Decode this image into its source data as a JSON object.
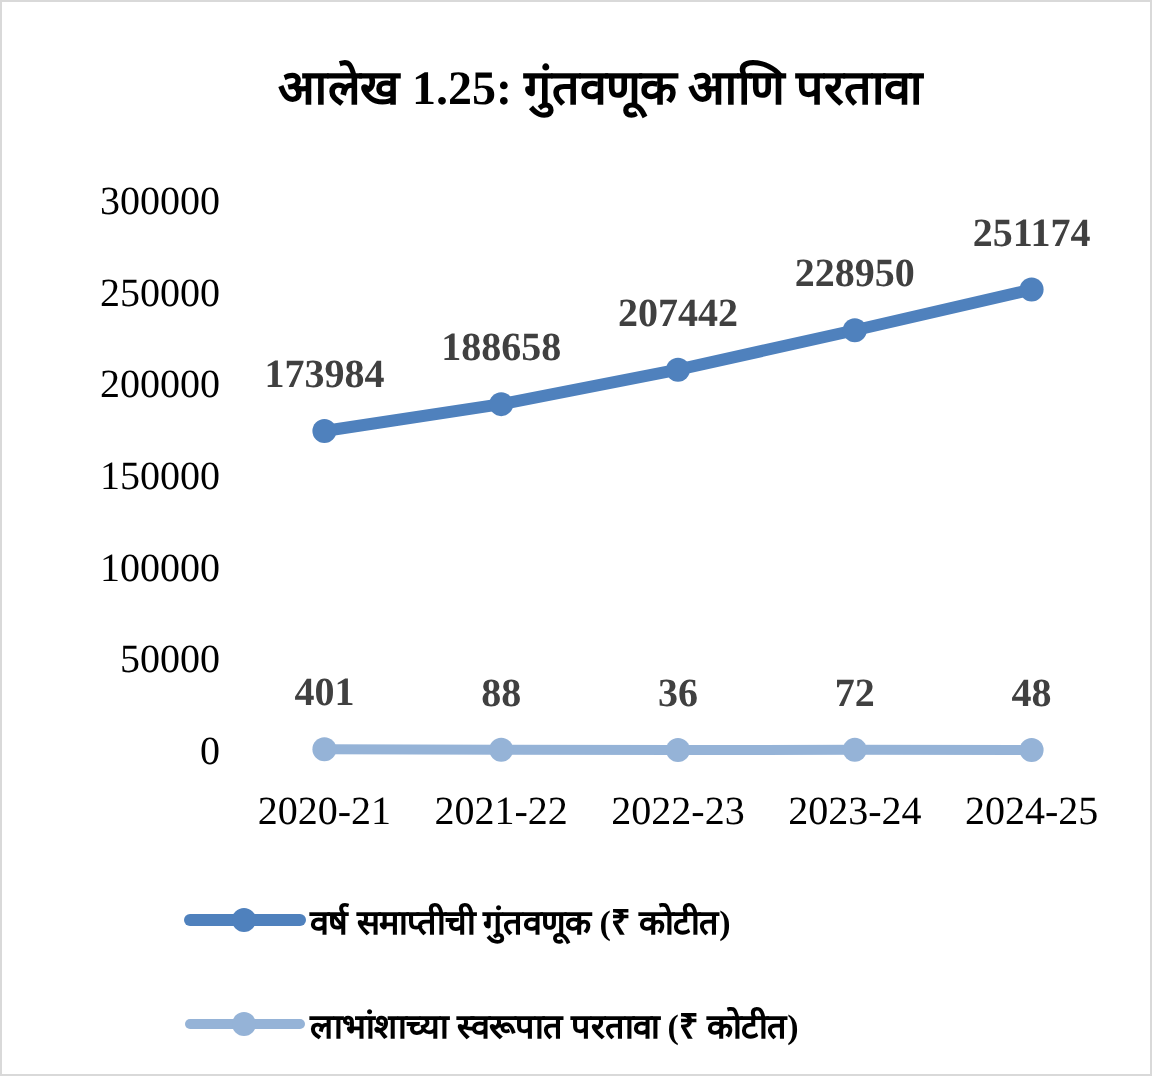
{
  "chart_data": {
    "type": "line",
    "title": "आलेख 1.25: गुंतवणूक आणि परतावा",
    "categories": [
      "2020-21",
      "2021-22",
      "2022-23",
      "2023-24",
      "2024-25"
    ],
    "series": [
      {
        "name": "वर्ष समाप्तीची गुंतवणूक (₹ कोटीत)",
        "color": "#4f81bd",
        "values": [
          173984,
          188658,
          207442,
          228950,
          251174
        ]
      },
      {
        "name": "लाभांशाच्या स्वरूपात परतावा (₹ कोटीत)",
        "color": "#95b3d7",
        "values": [
          401,
          88,
          36,
          72,
          48
        ]
      }
    ],
    "ylim": [
      0,
      300000
    ],
    "yticks": [
      0,
      50000,
      100000,
      150000,
      200000,
      250000,
      300000
    ],
    "data_labels": true,
    "marker": "circle",
    "legend": "bottom"
  }
}
